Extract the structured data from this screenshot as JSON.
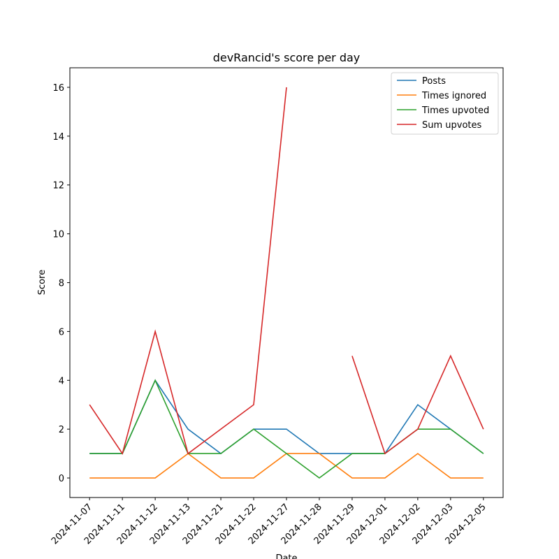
{
  "chart_data": {
    "type": "line",
    "title": "devRancid's score per day",
    "x_label": "Date",
    "y_label": "Score",
    "categories": [
      "2024-11-07",
      "2024-11-11",
      "2024-11-12",
      "2024-11-13",
      "2024-11-21",
      "2024-11-22",
      "2024-11-27",
      "2024-11-28",
      "2024-11-29",
      "2024-12-01",
      "2024-12-02",
      "2024-12-03",
      "2024-12-05"
    ],
    "series": [
      {
        "name": "Posts",
        "color": "#1f77b4",
        "values": [
          1,
          1,
          4,
          2,
          1,
          2,
          2,
          1,
          1,
          1,
          3,
          2,
          1
        ]
      },
      {
        "name": "Times ignored",
        "color": "#ff7f0e",
        "values": [
          0,
          0,
          0,
          1,
          0,
          0,
          1,
          1,
          0,
          0,
          1,
          0,
          0
        ]
      },
      {
        "name": "Times upvoted",
        "color": "#2ca02c",
        "values": [
          1,
          1,
          4,
          1,
          1,
          2,
          1,
          0,
          1,
          1,
          2,
          2,
          1
        ]
      },
      {
        "name": "Sum upvotes",
        "color": "#d62728",
        "values": [
          3,
          1,
          6,
          1,
          2,
          3,
          16,
          null,
          5,
          1,
          2,
          5,
          2
        ]
      }
    ],
    "ylim": [
      -0.8,
      16.8
    ],
    "yticks": [
      0,
      2,
      4,
      6,
      8,
      10,
      12,
      14,
      16
    ],
    "legend": "upper right"
  }
}
